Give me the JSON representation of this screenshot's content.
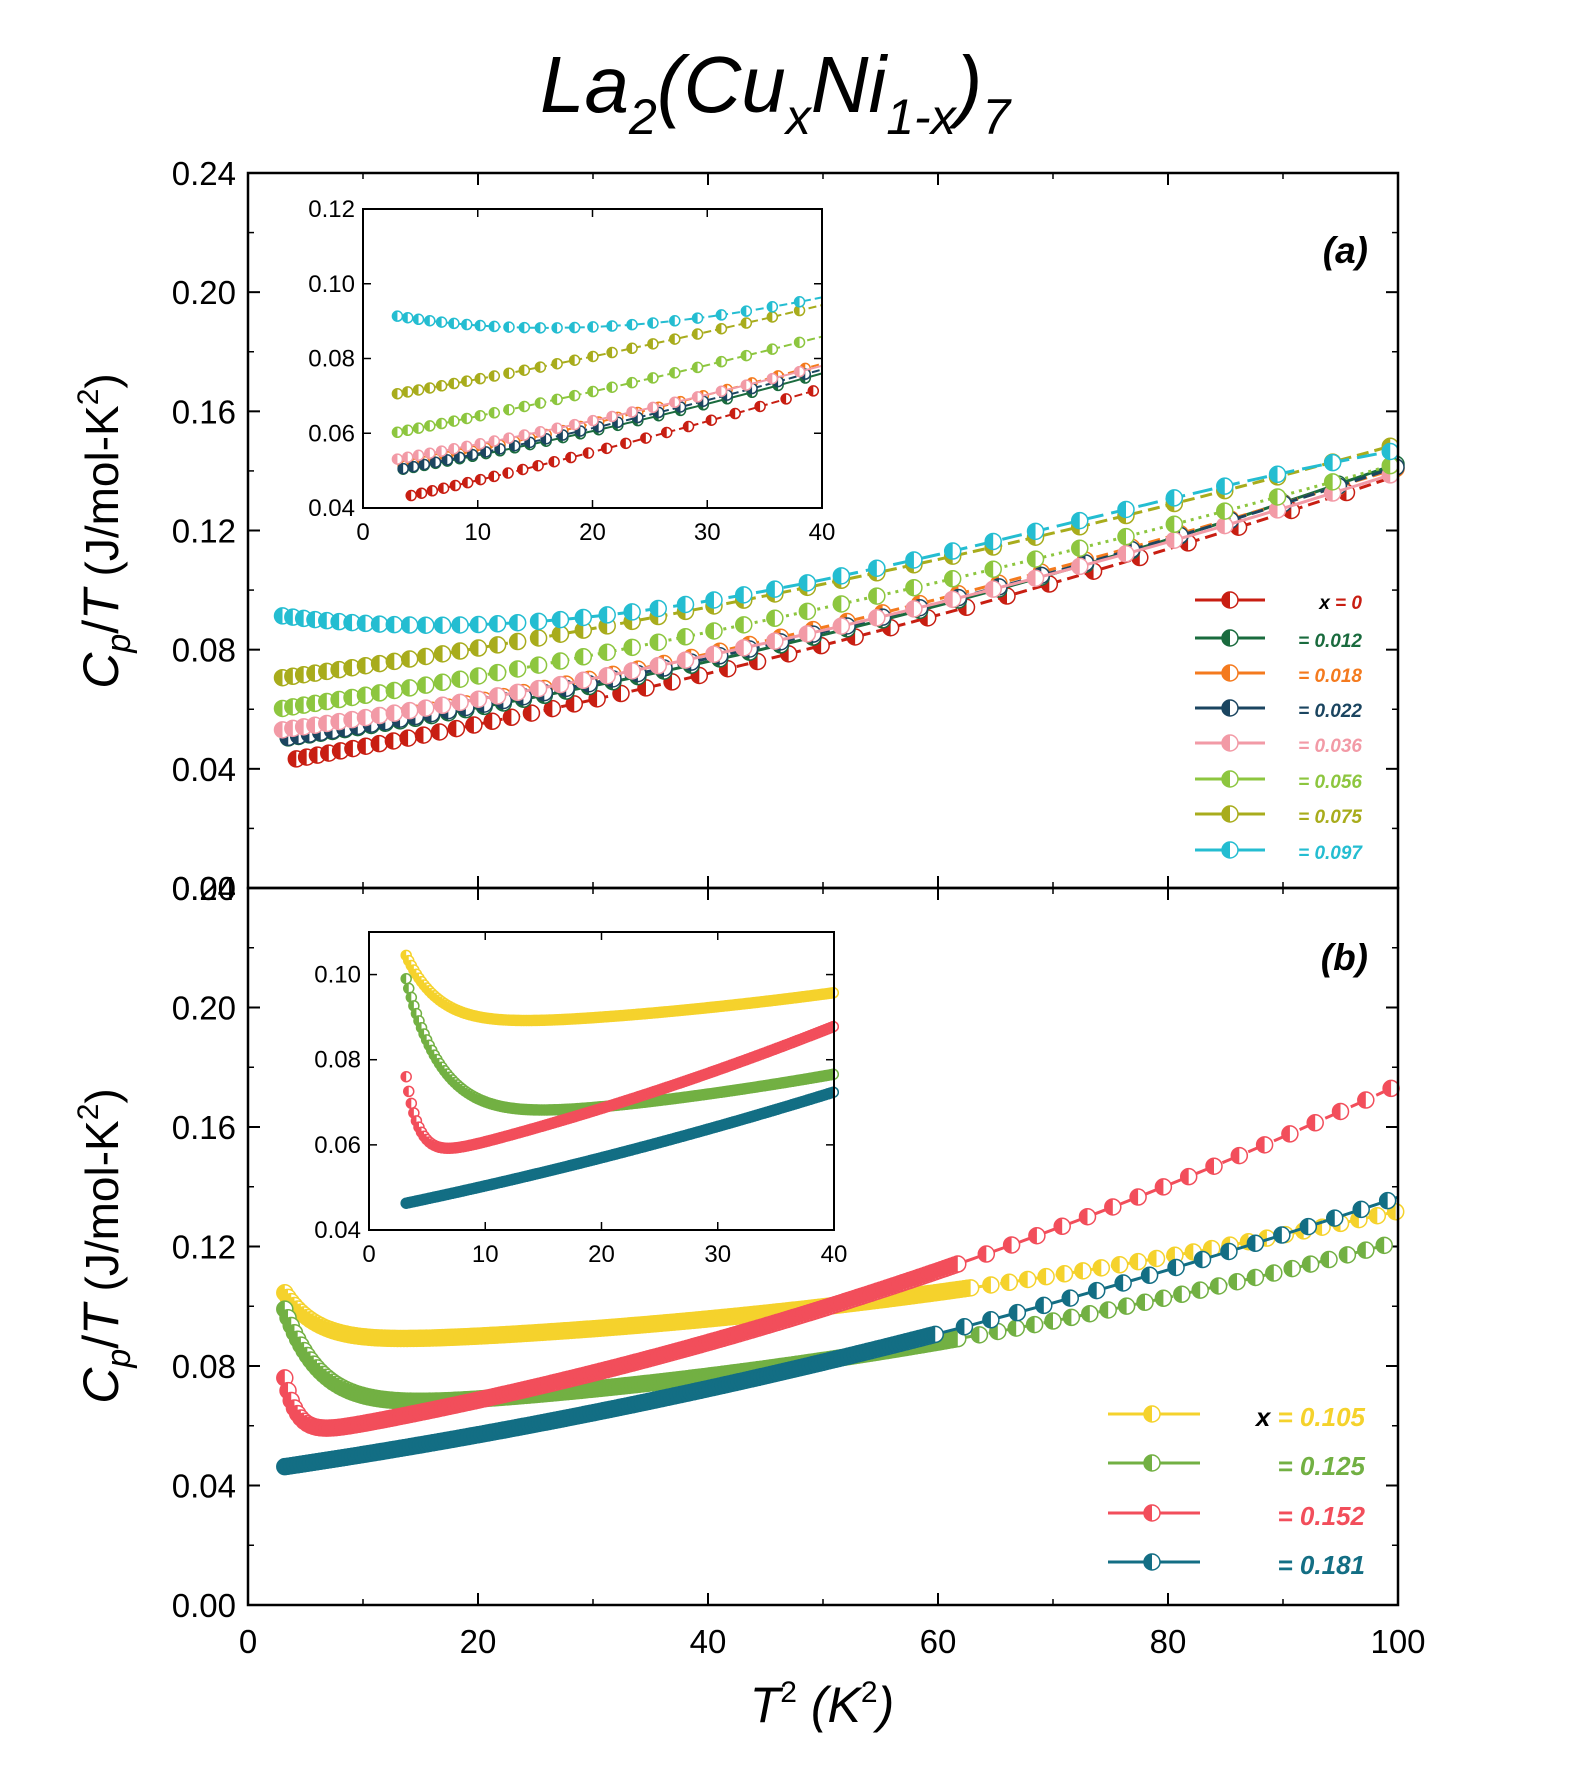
{
  "title": {
    "base": "La",
    "sub1": "2",
    "open": "(Cu",
    "sub2": "x",
    "mid": "Ni",
    "sub3": "1-x",
    "close": ")",
    "sub4": "7"
  },
  "axis_labels": {
    "y_main": "C",
    "y_sub": "p",
    "y_slash": "/",
    "y_T": "T",
    "y_unit": " (J/mol-K",
    "y_sup": "2",
    "y_close": ")",
    "x_T": "T",
    "x_sup": "2",
    "x_unit": " (K",
    "x_sup2": "2",
    "x_close": ")"
  },
  "chart_data": [
    {
      "id": "a",
      "type": "line",
      "panel_label": "(a)",
      "xlabel": "T² (K²)",
      "ylabel": "Cp/T (J/mol-K²)",
      "xlim": [
        0,
        100
      ],
      "ylim": [
        0,
        0.24
      ],
      "xticks": [
        "0",
        "20",
        "40",
        "60",
        "80",
        "100"
      ],
      "yticks": [
        "0.00",
        "0.04",
        "0.08",
        "0.12",
        "0.16",
        "0.20",
        "0.24"
      ],
      "legend_position": "right",
      "series": [
        {
          "name": "x = 0",
          "label_prefix": "x",
          "label": " = 0",
          "color": "#c81e12",
          "dash": "12 6",
          "a": 0.0405,
          "b": 0.00066,
          "c": 3.2e-06,
          "d": 0,
          "x0": 4.2
        },
        {
          "name": "= 0.012",
          "label_prefix": "",
          "label": "= 0.012",
          "color": "#1a6b3e",
          "dash": "none",
          "a": 0.0485,
          "b": 0.00052,
          "c": 4.2e-06,
          "d": 0,
          "x0": 3.5
        },
        {
          "name": "= 0.018",
          "label_prefix": "",
          "label": "= 0.018",
          "color": "#f47a1e",
          "dash": "12 6",
          "a": 0.049,
          "b": 0.00062,
          "c": 3e-06,
          "d": 0,
          "x0": 3.5
        },
        {
          "name": "= 0.022",
          "label_prefix": "",
          "label": "= 0.022",
          "color": "#1b4560",
          "dash": "12 6",
          "a": 0.0485,
          "b": 0.00057,
          "c": 3.6e-06,
          "d": 0,
          "x0": 3.5
        },
        {
          "name": "= 0.036",
          "label_prefix": "",
          "label": "= 0.036",
          "color": "#f29aa6",
          "dash": "none",
          "a": 0.0515,
          "b": 0.00052,
          "c": 3.6e-06,
          "d": 0,
          "x0": 3.0
        },
        {
          "name": "= 0.056",
          "label_prefix": "",
          "label": "= 0.056",
          "color": "#8dc63f",
          "dash": "3 5",
          "a": 0.0585,
          "b": 0.00058,
          "c": 2.6e-06,
          "d": 0,
          "x0": 3.0
        },
        {
          "name": "= 0.075",
          "label_prefix": "",
          "label": "= 0.075",
          "color": "#a8ac1c",
          "dash": "12 6",
          "a": 0.069,
          "b": 0.00052,
          "c": 2.8e-06,
          "d": 0,
          "x0": 3.0
        },
        {
          "name": "= 0.097",
          "label_prefix": "",
          "label": "= 0.097",
          "color": "#24bdd1",
          "dash": "20 8",
          "a": 0.093,
          "b": -0.00062,
          "c": 2.16e-05,
          "d": -1e-07,
          "x0": 3.0
        }
      ],
      "inset": {
        "xlim": [
          0,
          40
        ],
        "ylim": [
          0.04,
          0.12
        ],
        "xticks": [
          "0",
          "10",
          "20",
          "30",
          "40"
        ],
        "yticks": [
          "0.04",
          "0.06",
          "0.08",
          "0.10",
          "0.12"
        ]
      }
    },
    {
      "id": "b",
      "type": "line",
      "panel_label": "(b)",
      "xlabel": "T² (K²)",
      "ylabel": "Cp/T (J/mol-K²)",
      "xlim": [
        0,
        100
      ],
      "ylim": [
        0,
        0.24
      ],
      "xticks": [
        "0",
        "20",
        "40",
        "60",
        "80",
        "100"
      ],
      "yticks": [
        "0.00",
        "0.04",
        "0.08",
        "0.12",
        "0.16",
        "0.20",
        "0.24"
      ],
      "legend_position": "bottom-right",
      "series": [
        {
          "name": "x = 0.105",
          "label_prefix": "x",
          "label": " = 0.105",
          "color": "#f5d22c",
          "model": "min",
          "a": 0.0873,
          "b": 5.5e-05,
          "c": 3.9e-06,
          "p": 0.017,
          "k": 0.35,
          "x0": 3.2
        },
        {
          "name": "= 0.125",
          "label_prefix": "",
          "label": "= 0.125",
          "color": "#72b043",
          "model": "min",
          "a": 0.0646,
          "b": 0.00012,
          "c": 4.5e-06,
          "p": 0.034,
          "k": 0.32,
          "x0": 3.2
        },
        {
          "name": "= 0.152",
          "label_prefix": "",
          "label": "= 0.152",
          "color": "#f24e5b",
          "model": "min",
          "a": 0.054,
          "b": 0.00061,
          "c": 5.9e-06,
          "p": 0.02,
          "k": 0.9,
          "x0": 3.2
        },
        {
          "name": "= 0.181",
          "label_prefix": "",
          "label": "= 0.181",
          "color": "#136e84",
          "model": "poly",
          "a": 0.0445,
          "b": 0.00055,
          "c": 3.7e-06,
          "x0": 3.2
        }
      ],
      "inset": {
        "xlim": [
          0,
          40
        ],
        "ylim": [
          0.04,
          0.11
        ],
        "xticks": [
          "0",
          "10",
          "20",
          "30",
          "40"
        ],
        "yticks": [
          "0.04",
          "0.06",
          "0.08",
          "0.10"
        ]
      }
    }
  ]
}
